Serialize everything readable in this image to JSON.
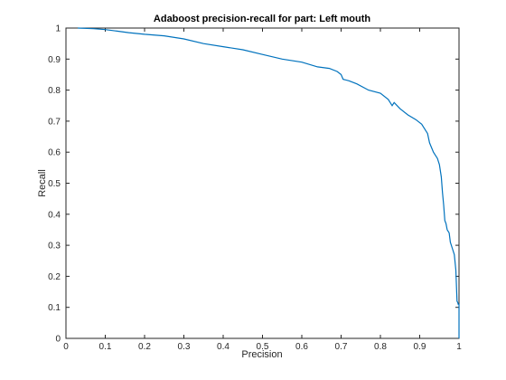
{
  "chart_data": {
    "type": "line",
    "title": "Adaboost precision-recall for part: Left mouth",
    "xlabel": "Precision",
    "ylabel": "Recall",
    "xlim": [
      0,
      1
    ],
    "ylim": [
      0,
      1
    ],
    "xticks": [
      "0",
      "0.1",
      "0.2",
      "0.3",
      "0.4",
      "0.5",
      "0.6",
      "0.7",
      "0.8",
      "0.9",
      "1"
    ],
    "yticks": [
      "0",
      "0.1",
      "0.2",
      "0.3",
      "0.4",
      "0.5",
      "0.6",
      "0.7",
      "0.8",
      "0.9",
      "1"
    ],
    "grid": false,
    "line_color": "#0072bd",
    "series": [
      {
        "x": [
          0.03,
          0.07,
          0.1,
          0.13,
          0.16,
          0.2,
          0.25,
          0.3,
          0.35,
          0.4,
          0.45,
          0.5,
          0.55,
          0.6,
          0.64,
          0.67,
          0.69,
          0.7,
          0.705,
          0.72,
          0.74,
          0.77,
          0.8,
          0.82,
          0.83,
          0.835,
          0.85,
          0.87,
          0.89,
          0.905,
          0.92,
          0.925,
          0.935,
          0.945,
          0.95,
          0.955,
          0.958,
          0.961,
          0.964,
          0.967,
          0.97,
          0.975,
          0.978,
          0.983,
          0.988,
          0.992,
          0.995,
          0.997,
          0.998,
          1.0,
          1.0
        ],
        "y": [
          1.0,
          0.998,
          0.995,
          0.99,
          0.985,
          0.98,
          0.975,
          0.965,
          0.95,
          0.94,
          0.93,
          0.915,
          0.9,
          0.89,
          0.875,
          0.87,
          0.86,
          0.85,
          0.835,
          0.83,
          0.82,
          0.8,
          0.79,
          0.77,
          0.75,
          0.76,
          0.74,
          0.72,
          0.705,
          0.69,
          0.66,
          0.63,
          0.6,
          0.58,
          0.56,
          0.52,
          0.47,
          0.43,
          0.38,
          0.37,
          0.35,
          0.34,
          0.31,
          0.29,
          0.27,
          0.22,
          0.12,
          0.115,
          0.11,
          0.11,
          0.0
        ]
      }
    ]
  }
}
